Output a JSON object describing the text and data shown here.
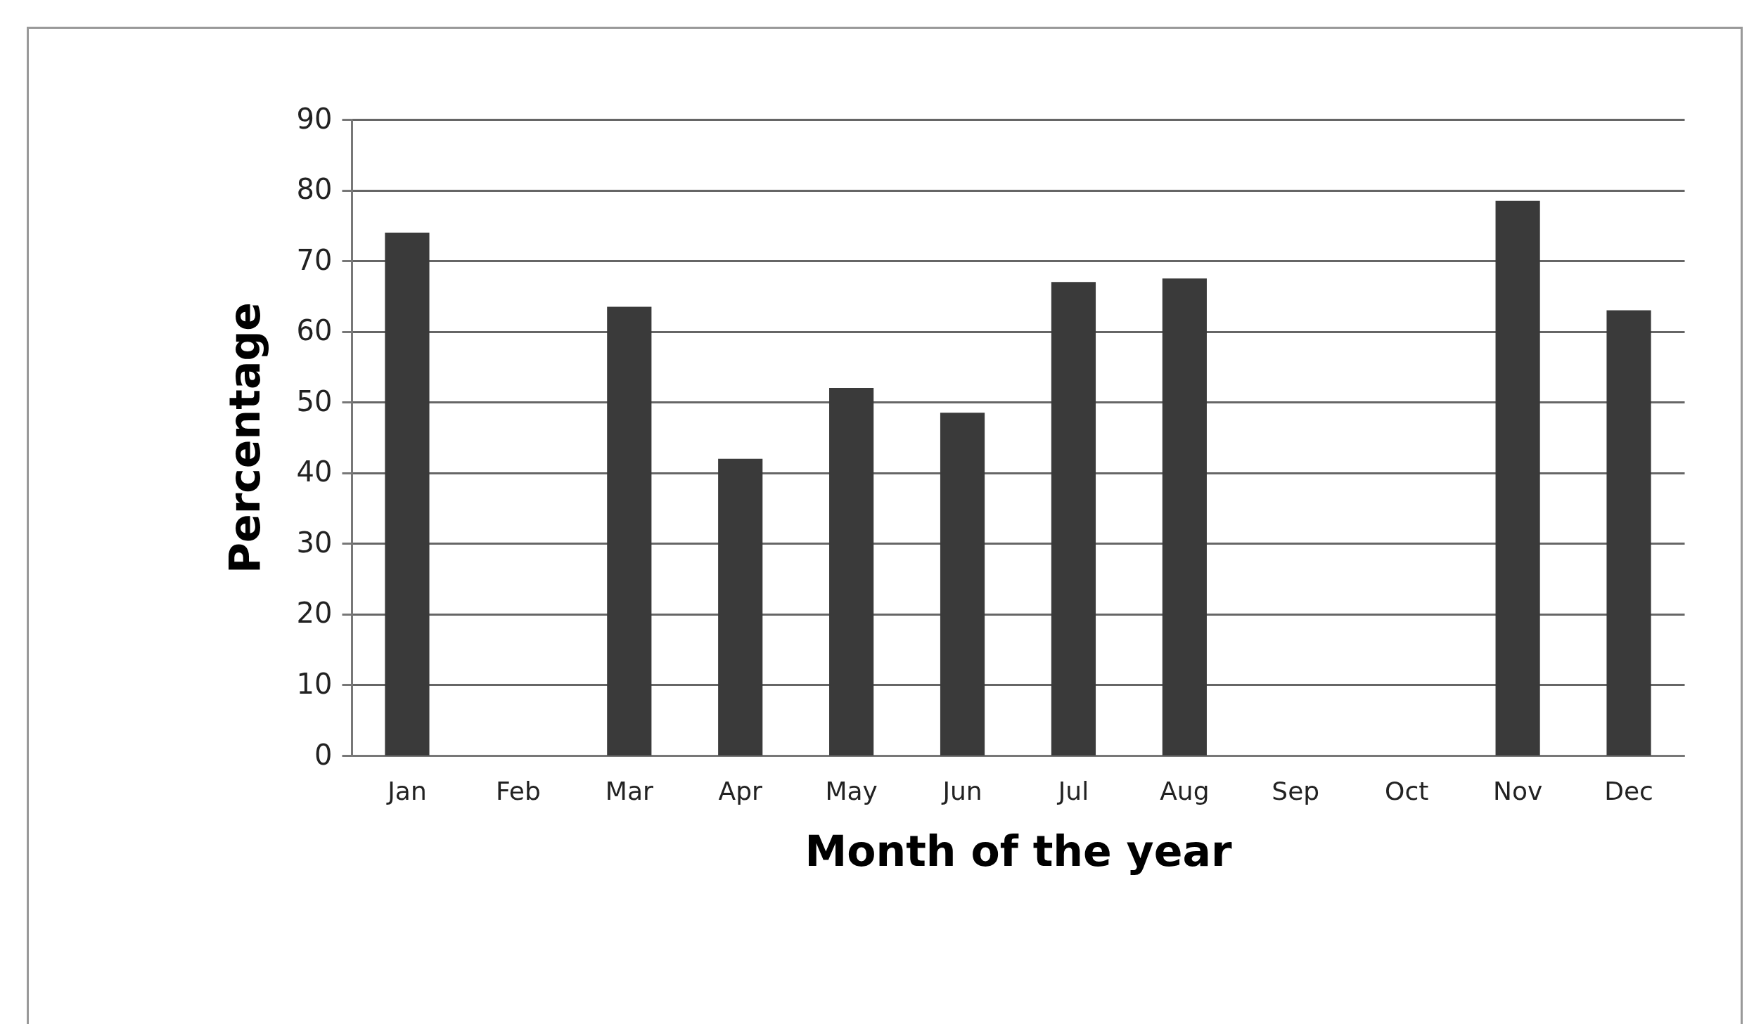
{
  "chart_data": {
    "type": "bar",
    "xlabel": "Month of the year",
    "ylabel": "Percentage",
    "categories": [
      "Jan",
      "Feb",
      "Mar",
      "Apr",
      "May",
      "Jun",
      "Jul",
      "Aug",
      "Sep",
      "Oct",
      "Nov",
      "Dec"
    ],
    "values": [
      74,
      null,
      63.5,
      42,
      52,
      48.5,
      67,
      67.5,
      null,
      null,
      78.5,
      63
    ],
    "color": "#3a3a3a",
    "ylim": [
      0,
      90
    ],
    "yticks": [
      0,
      10,
      20,
      30,
      40,
      50,
      60,
      70,
      80,
      90
    ],
    "grid": "y"
  }
}
